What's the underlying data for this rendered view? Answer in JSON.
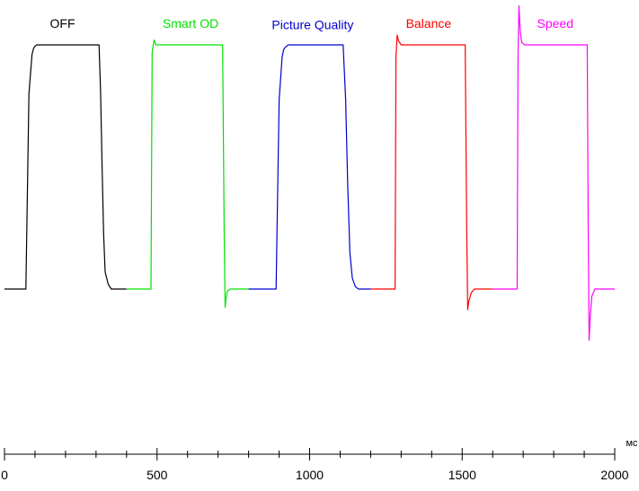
{
  "chart_data": {
    "type": "line",
    "title": "",
    "xlabel": "мс",
    "ylabel": "",
    "xlim": [
      0,
      2000
    ],
    "ylim": [
      -1.5,
      2.55
    ],
    "x_ticks": [
      0,
      500,
      1000,
      1500,
      2000
    ],
    "x_tick_labels": [
      "0",
      "500",
      "1000",
      "1500",
      "2000"
    ],
    "x_minor_tick_step": 100,
    "grid": false,
    "legend": "none",
    "series": [
      {
        "name": "OFF",
        "color": "#000000",
        "x": [
          0,
          70,
          80,
          90,
          95,
          100,
          106,
          120,
          310,
          315,
          320,
          325,
          330,
          340,
          350,
          400
        ],
        "y": [
          0,
          0,
          1.6,
          1.92,
          1.97,
          1.99,
          2.0,
          2.0,
          2.0,
          1.62,
          1.0,
          0.45,
          0.14,
          0.04,
          0.0,
          0.0
        ]
      },
      {
        "name": "Smart OD",
        "color": "#00e000",
        "x": [
          400,
          480,
          484,
          490,
          496,
          503,
          510,
          715,
          720,
          723,
          726,
          730,
          740,
          760,
          800
        ],
        "y": [
          0,
          0,
          1.94,
          2.04,
          2.0,
          2.0,
          2.0,
          2.0,
          0.5,
          -0.15,
          -0.08,
          -0.02,
          0.0,
          0.0,
          0.0
        ]
      },
      {
        "name": "Picture Quality",
        "color": "#0000d0",
        "x": [
          800,
          890,
          900,
          910,
          915,
          920,
          930,
          1110,
          1118,
          1125,
          1132,
          1140,
          1150,
          1160,
          1200
        ],
        "y": [
          0,
          0,
          1.55,
          1.9,
          1.96,
          1.98,
          2.0,
          2.0,
          1.55,
          0.85,
          0.3,
          0.09,
          0.02,
          0.0,
          0.0
        ]
      },
      {
        "name": "Balance",
        "color": "#ff0000",
        "x": [
          1200,
          1280,
          1283,
          1287,
          1292,
          1300,
          1310,
          1510,
          1515,
          1518,
          1522,
          1530,
          1540,
          1555,
          1600
        ],
        "y": [
          0,
          0,
          1.9,
          2.08,
          2.03,
          2.0,
          2.0,
          2.0,
          0.5,
          -0.17,
          -0.1,
          -0.03,
          0.0,
          0.0,
          0.0
        ]
      },
      {
        "name": "Speed",
        "color": "#ff00ff",
        "x": [
          1600,
          1680,
          1683,
          1686,
          1690,
          1695,
          1705,
          1910,
          1913,
          1916,
          1920,
          1925,
          1935,
          1950,
          2000
        ],
        "y": [
          0,
          0,
          1.9,
          2.32,
          2.12,
          2.02,
          2.0,
          2.0,
          0.5,
          -0.42,
          -0.22,
          -0.06,
          0.0,
          0.0,
          0.0
        ]
      }
    ],
    "annotations": [
      {
        "text": "OFF",
        "x": 190,
        "y": 2.14,
        "color": "#000000"
      },
      {
        "text": "Smart OD",
        "x": 610,
        "y": 2.14,
        "color": "#00e000"
      },
      {
        "text": "Picture Quality",
        "x": 1010,
        "y": 2.13,
        "color": "#0000d0"
      },
      {
        "text": "Balance",
        "x": 1390,
        "y": 2.14,
        "color": "#ff0000"
      },
      {
        "text": "Speed",
        "x": 1805,
        "y": 2.14,
        "color": "#ff00ff"
      }
    ]
  }
}
